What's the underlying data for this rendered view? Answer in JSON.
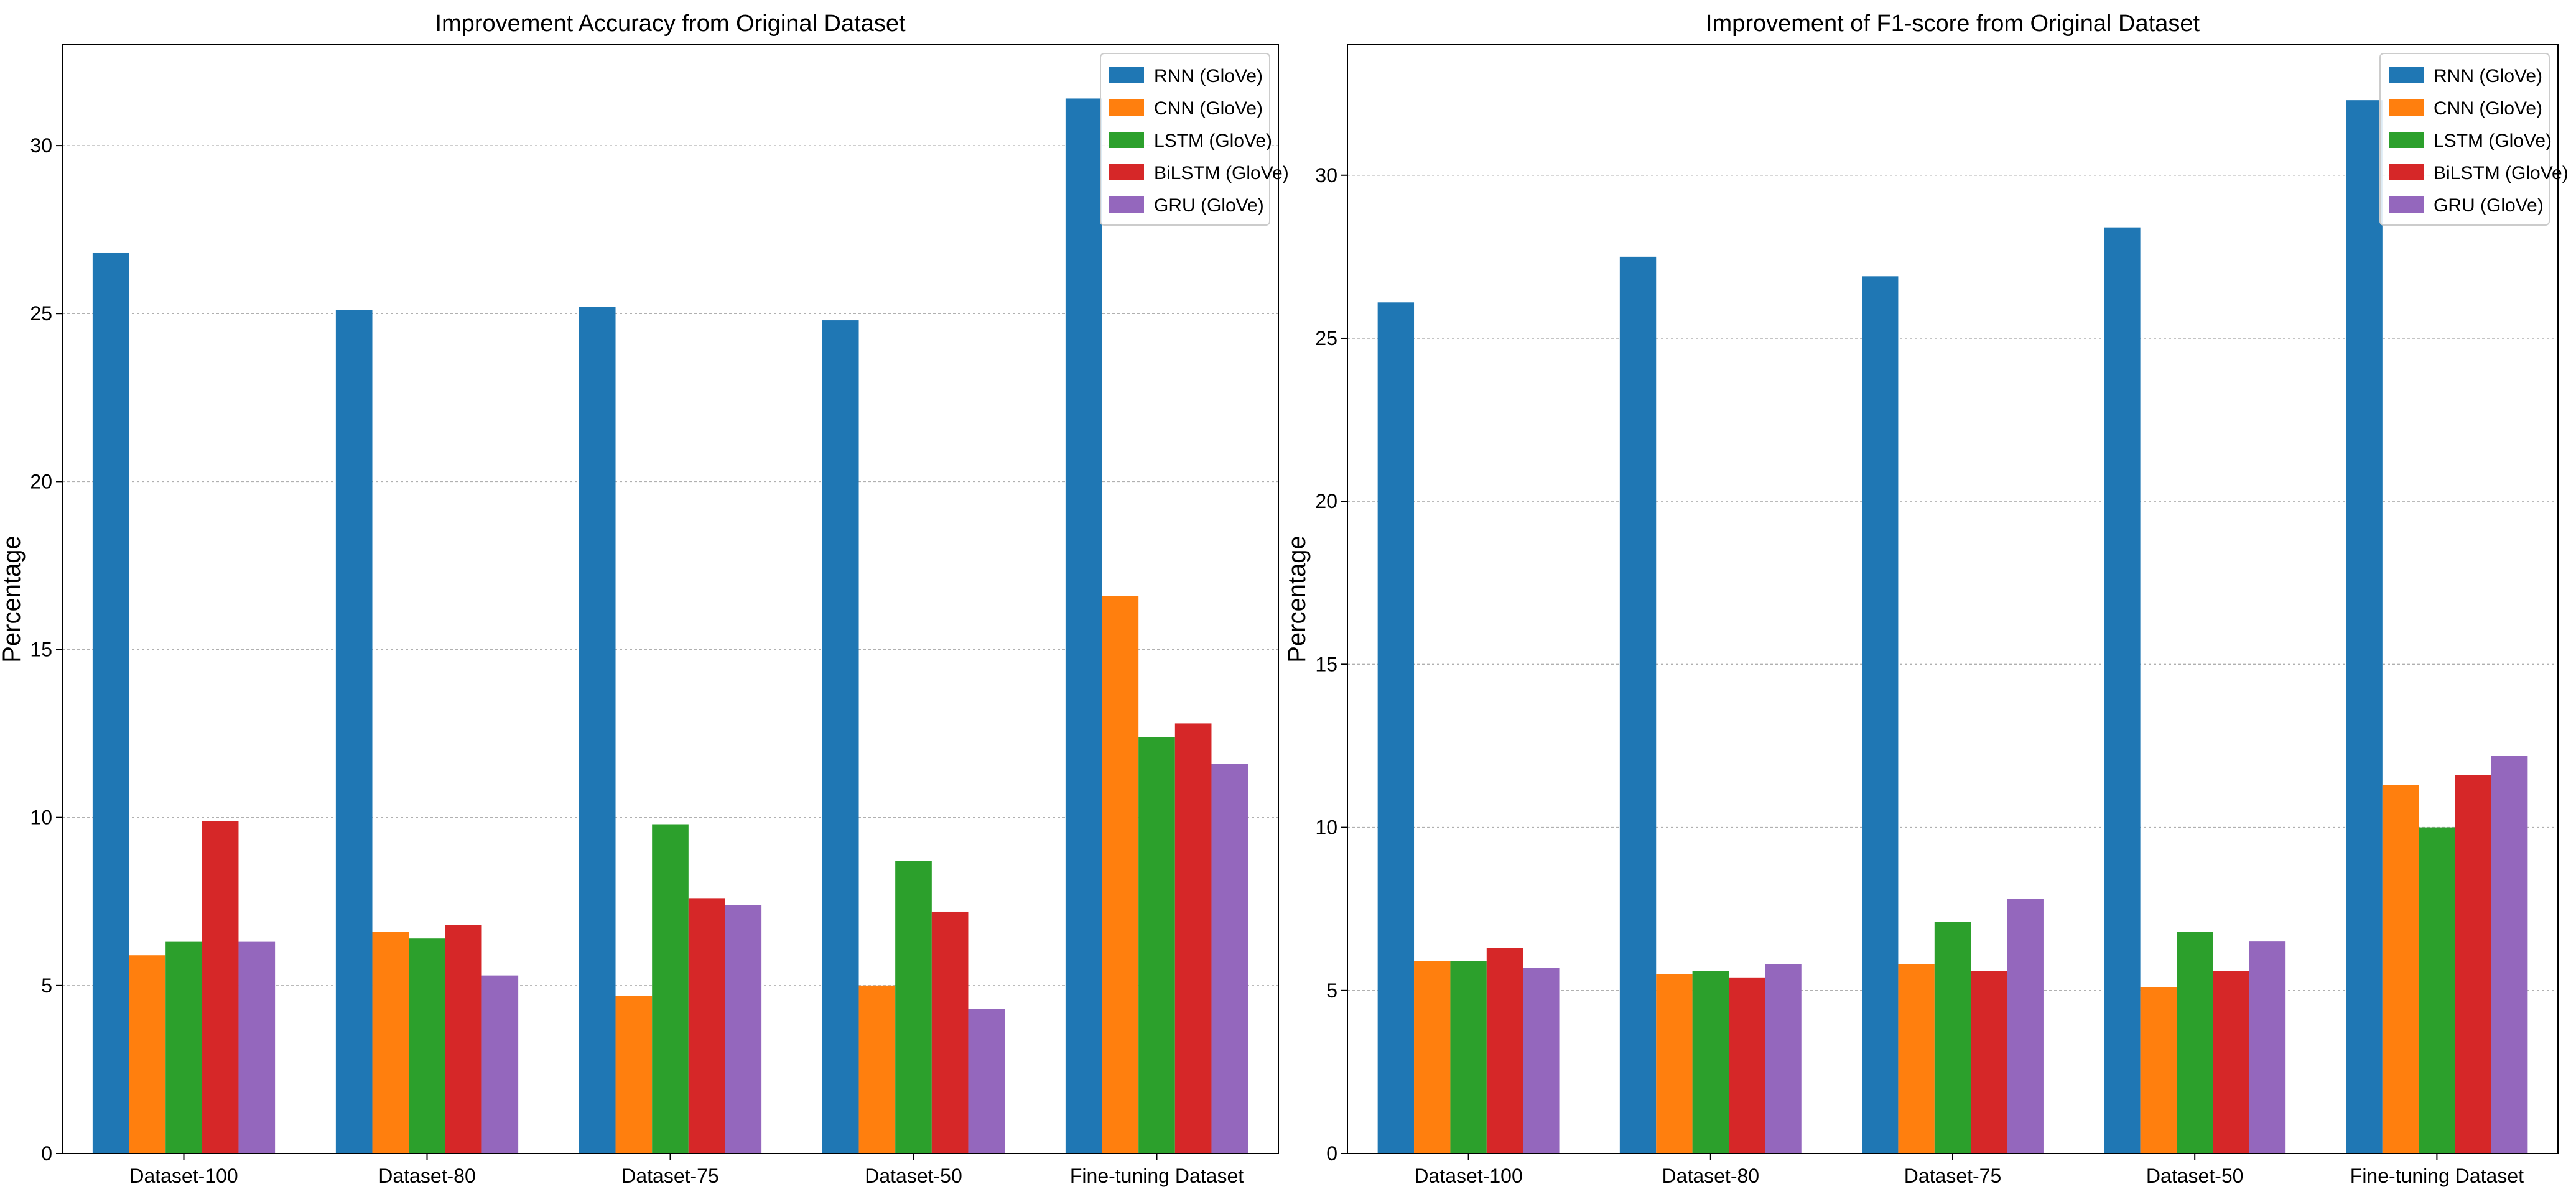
{
  "colors": {
    "RNN (GloVe)": "#1f77b4",
    "CNN (GloVe)": "#ff7f0e",
    "LSTM (GloVe)": "#2ca02c",
    "BiLSTM (GloVe)": "#d62728",
    "GRU (GloVe)": "#9467bd"
  },
  "chart_data": [
    {
      "type": "bar",
      "title": "Improvement Accuracy from Original Dataset",
      "xlabel": "",
      "ylabel": "Percentage",
      "ylim": [
        0,
        33
      ],
      "yticks": [
        0,
        5,
        10,
        15,
        20,
        25,
        30
      ],
      "grid": "y",
      "legend": "top-right",
      "categories": [
        "Dataset-100",
        "Dataset-80",
        "Dataset-75",
        "Dataset-50",
        "Fine-tuning Dataset"
      ],
      "series": [
        {
          "name": "RNN (GloVe)",
          "values": [
            26.8,
            25.1,
            25.2,
            24.8,
            31.4
          ]
        },
        {
          "name": "CNN (GloVe)",
          "values": [
            5.9,
            6.6,
            4.7,
            5.0,
            16.6
          ]
        },
        {
          "name": "LSTM (GloVe)",
          "values": [
            6.3,
            6.4,
            9.8,
            8.7,
            12.4
          ]
        },
        {
          "name": "BiLSTM (GloVe)",
          "values": [
            9.9,
            6.8,
            7.6,
            7.2,
            12.8
          ]
        },
        {
          "name": "GRU (GloVe)",
          "values": [
            6.3,
            5.3,
            7.4,
            4.3,
            11.6
          ]
        }
      ]
    },
    {
      "type": "bar",
      "title": "Improvement of F1-score from Original Dataset",
      "xlabel": "",
      "ylabel": "Percentage",
      "ylim": [
        0,
        34
      ],
      "yticks": [
        0,
        5,
        10,
        15,
        20,
        25,
        30
      ],
      "grid": "y",
      "legend": "top-right",
      "categories": [
        "Dataset-100",
        "Dataset-80",
        "Dataset-75",
        "Dataset-50",
        "Fine-tuning Dataset"
      ],
      "series": [
        {
          "name": "RNN (GloVe)",
          "values": [
            26.1,
            27.5,
            26.9,
            28.4,
            32.3
          ]
        },
        {
          "name": "CNN (GloVe)",
          "values": [
            5.9,
            5.5,
            5.8,
            5.1,
            11.3
          ]
        },
        {
          "name": "LSTM (GloVe)",
          "values": [
            5.9,
            5.6,
            7.1,
            6.8,
            10.0
          ]
        },
        {
          "name": "BiLSTM (GloVe)",
          "values": [
            6.3,
            5.4,
            5.6,
            5.6,
            11.6
          ]
        },
        {
          "name": "GRU (GloVe)",
          "values": [
            5.7,
            5.8,
            7.8,
            6.5,
            12.2
          ]
        }
      ]
    }
  ]
}
